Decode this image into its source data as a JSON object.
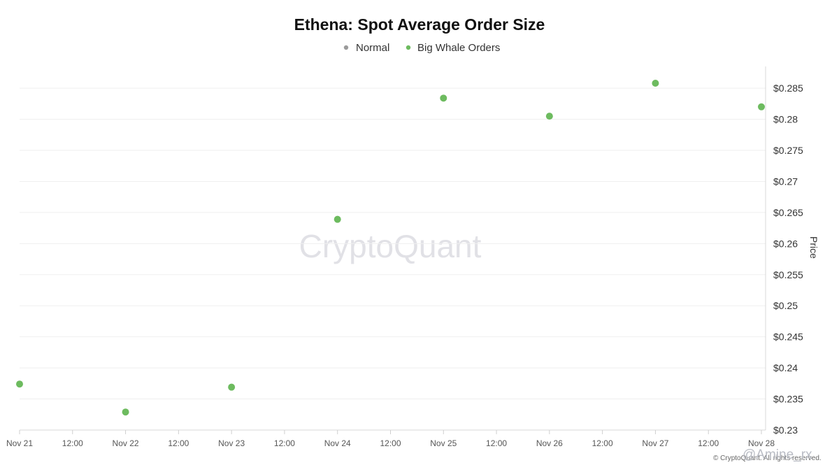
{
  "chart_data": {
    "type": "scatter",
    "title": "Ethena: Spot Average Order Size",
    "ylabel": "Price",
    "x_tick_labels": [
      "Nov 21",
      "12:00",
      "Nov 22",
      "12:00",
      "Nov 23",
      "12:00",
      "Nov 24",
      "12:00",
      "Nov 25",
      "12:00",
      "Nov 26",
      "12:00",
      "Nov 27",
      "12:00",
      "Nov 28"
    ],
    "y_tick_labels": [
      "$0.23",
      "$0.235",
      "$0.24",
      "$0.245",
      "$0.25",
      "$0.255",
      "$0.26",
      "$0.265",
      "$0.27",
      "$0.275",
      "$0.28",
      "$0.285"
    ],
    "xlim": [
      "Nov 21",
      "Nov 28"
    ],
    "ylim": [
      0.23,
      0.2885
    ],
    "grid": true,
    "legend_position": "top-center",
    "series": [
      {
        "name": "Normal",
        "color": "#9b9b9b",
        "x": [],
        "y": []
      },
      {
        "name": "Big Whale Orders",
        "color": "#6dbb5f",
        "x": [
          "Nov 21",
          "Nov 22",
          "Nov 23",
          "Nov 24",
          "Nov 25",
          "Nov 26",
          "Nov 27",
          "Nov 28"
        ],
        "y": [
          0.2374,
          0.2329,
          0.2369,
          0.2639,
          0.2834,
          0.2805,
          0.2858,
          0.282
        ]
      }
    ]
  },
  "watermark": "CryptoQuant",
  "footer": "© CryptoQuant. All rights reserved.",
  "stamp": "@Amine_rx"
}
